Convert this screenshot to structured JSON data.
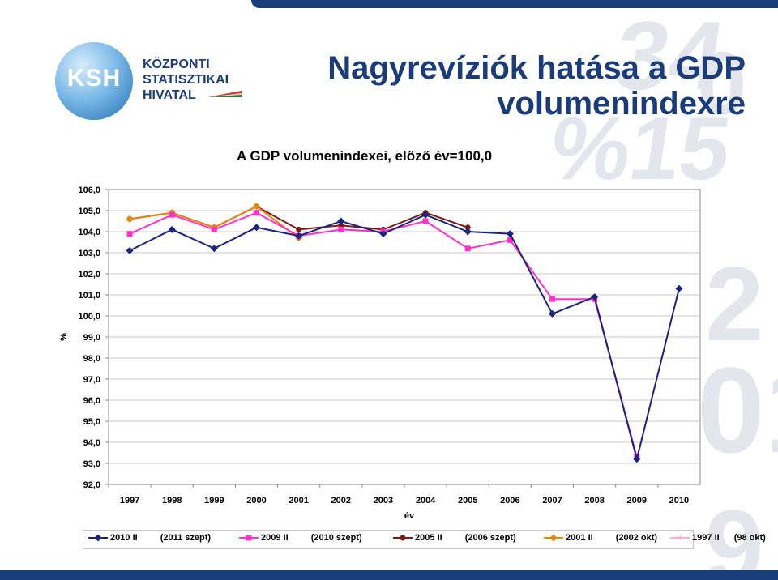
{
  "header": {
    "logo": {
      "abbr": "KSH",
      "line1": "KÖZPONTI",
      "line2": "STATISZTIKAI",
      "line3": "HIVATAL"
    },
    "title_line1": "Nagyrevíziók hatása a GDP",
    "title_line2": "volumenindexre"
  },
  "colors": {
    "brand": "#1a3c7a"
  },
  "chart_data": {
    "type": "line",
    "title": "A GDP volumenindexei, előző év=100,0",
    "xlabel": "év",
    "ylabel": "%",
    "ylim": [
      92,
      106
    ],
    "yticks": [
      "106,0",
      "105,0",
      "104,0",
      "103,0",
      "102,0",
      "101,0",
      "100,0",
      "99,0",
      "98,0",
      "97,0",
      "96,0",
      "95,0",
      "94,0",
      "93,0",
      "92,0"
    ],
    "categories": [
      "1997",
      "1998",
      "1999",
      "2000",
      "2001",
      "2002",
      "2003",
      "2004",
      "2005",
      "2006",
      "2007",
      "2008",
      "2009",
      "2010"
    ],
    "grid": true,
    "legend_position": "bottom",
    "series": [
      {
        "name": "2010 II",
        "note": "(2011 szept)",
        "color": "#1a237e",
        "marker": "diamond",
        "values": [
          103.1,
          104.1,
          103.2,
          104.2,
          103.8,
          104.5,
          103.9,
          104.8,
          104.0,
          103.9,
          100.1,
          100.9,
          93.2,
          101.3
        ]
      },
      {
        "name": "2009 II",
        "note": "(2010 szept)",
        "color": "#ff33cc",
        "marker": "square",
        "values": [
          103.9,
          104.8,
          104.1,
          104.9,
          103.8,
          104.1,
          104.0,
          104.5,
          103.2,
          103.6,
          100.8,
          100.8,
          93.3,
          null
        ]
      },
      {
        "name": "2005 II",
        "note": "(2006 szept)",
        "color": "#7a1a10",
        "marker": "circle",
        "values": [
          104.6,
          104.9,
          104.2,
          105.2,
          104.1,
          104.3,
          104.1,
          104.9,
          104.2,
          null,
          null,
          null,
          null,
          null
        ]
      },
      {
        "name": "2001 II",
        "note": "(2002 okt)",
        "color": "#e8850c",
        "marker": "diamond",
        "values": [
          104.6,
          104.9,
          104.2,
          105.2,
          103.7,
          null,
          null,
          null,
          null,
          null,
          null,
          null,
          null,
          null
        ]
      },
      {
        "name": "1997 II",
        "note": "(98 okt)",
        "color": "#ffaadd",
        "marker": "star",
        "values": [
          null,
          null,
          null,
          null,
          null,
          null,
          null,
          null,
          null,
          null,
          null,
          null,
          null,
          null
        ]
      }
    ]
  }
}
